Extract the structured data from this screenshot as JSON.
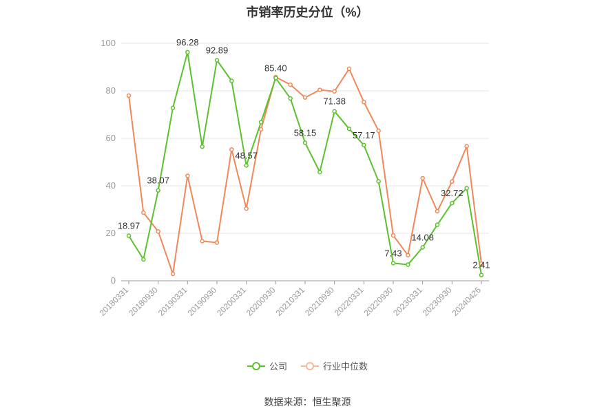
{
  "chart_data": {
    "type": "line",
    "title": "市销率历史分位（%）",
    "source": "数据来源：恒生聚源",
    "xlabel": "",
    "ylabel": "",
    "ylim": [
      0,
      100
    ],
    "yticks": [
      0,
      20,
      40,
      60,
      80,
      100
    ],
    "grid": true,
    "legend_position": "bottom",
    "x": [
      "20180331",
      "20180630",
      "20180930",
      "20181231",
      "20190331",
      "20190630",
      "20190930",
      "20191231",
      "20200331",
      "20200630",
      "20200930",
      "20201231",
      "20210331",
      "20210630",
      "20210930",
      "20211231",
      "20220331",
      "20220630",
      "20220930",
      "20221231",
      "20230331",
      "20230630",
      "20230930",
      "20231231",
      "20240426"
    ],
    "xtick_labels": [
      "20180331",
      "20180930",
      "20190331",
      "20190930",
      "20200331",
      "20200930",
      "20210331",
      "20210930",
      "20220331",
      "20220930",
      "20230331",
      "20230930",
      "20240426"
    ],
    "series": [
      {
        "name": "公司",
        "color": "#5cc12e",
        "values": [
          18.97,
          9.0,
          38.07,
          72.8,
          96.28,
          56.5,
          92.89,
          84.2,
          48.57,
          66.8,
          85.4,
          76.8,
          58.15,
          45.8,
          71.38,
          64.0,
          57.17,
          41.9,
          7.43,
          6.8,
          14.08,
          23.6,
          32.72,
          39.0,
          2.41
        ],
        "labels": [
          "18.97",
          "",
          "38.07",
          "",
          "96.28",
          "",
          "92.89",
          "",
          "48.57",
          "",
          "85.40",
          "",
          "58.15",
          "",
          "71.38",
          "",
          "57.17",
          "",
          "7.43",
          "",
          "14.08",
          "",
          "32.72",
          "",
          "2.41"
        ]
      },
      {
        "name": "行业中位数",
        "color": "#f0885a",
        "values": [
          78.0,
          28.7,
          20.8,
          2.9,
          44.2,
          16.7,
          16.1,
          55.3,
          30.4,
          63.8,
          85.8,
          82.6,
          77.2,
          80.4,
          79.8,
          89.3,
          75.3,
          63.2,
          19.1,
          10.8,
          43.2,
          29.3,
          41.8,
          56.7,
          7.2
        ]
      }
    ]
  }
}
